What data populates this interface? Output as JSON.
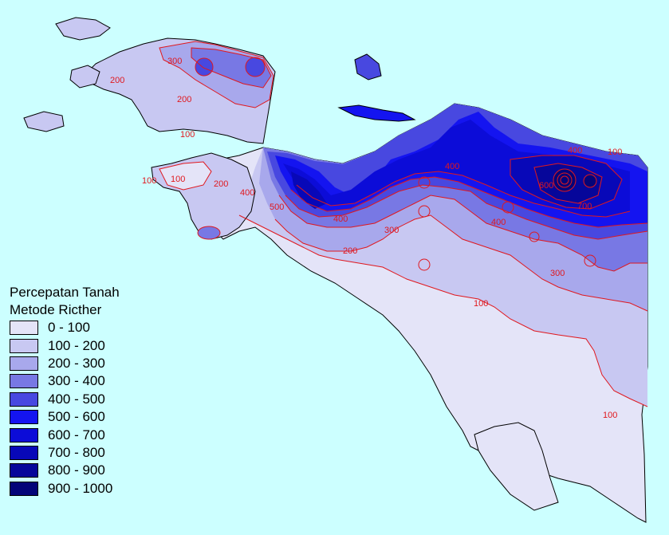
{
  "legend": {
    "title_line1": "Percepatan Tanah",
    "title_line2": "Metode Ricther",
    "classes": [
      {
        "label": "0 - 100",
        "color": "#e4e4f8"
      },
      {
        "label": "100 - 200",
        "color": "#c8c8f2"
      },
      {
        "label": "200 - 300",
        "color": "#a8a8ec"
      },
      {
        "label": "300 - 400",
        "color": "#7878e4"
      },
      {
        "label": "400 - 500",
        "color": "#4848e0"
      },
      {
        "label": "500 - 600",
        "color": "#1414f0"
      },
      {
        "label": "600 - 700",
        "color": "#0c0cd8"
      },
      {
        "label": "700 - 800",
        "color": "#0808b8"
      },
      {
        "label": "800 - 900",
        "color": "#06069a"
      },
      {
        "label": "900 - 1000",
        "color": "#040478"
      }
    ]
  },
  "contour_labels": [
    "300",
    "200",
    "200",
    "100",
    "100",
    "100",
    "200",
    "400",
    "500",
    "400",
    "200",
    "300",
    "400",
    "100",
    "300",
    "100",
    "700",
    "600",
    "400",
    "400",
    "100"
  ],
  "colors": {
    "sea": "#ccffff",
    "contour_line": "#e0181e",
    "coastline": "#000000"
  }
}
